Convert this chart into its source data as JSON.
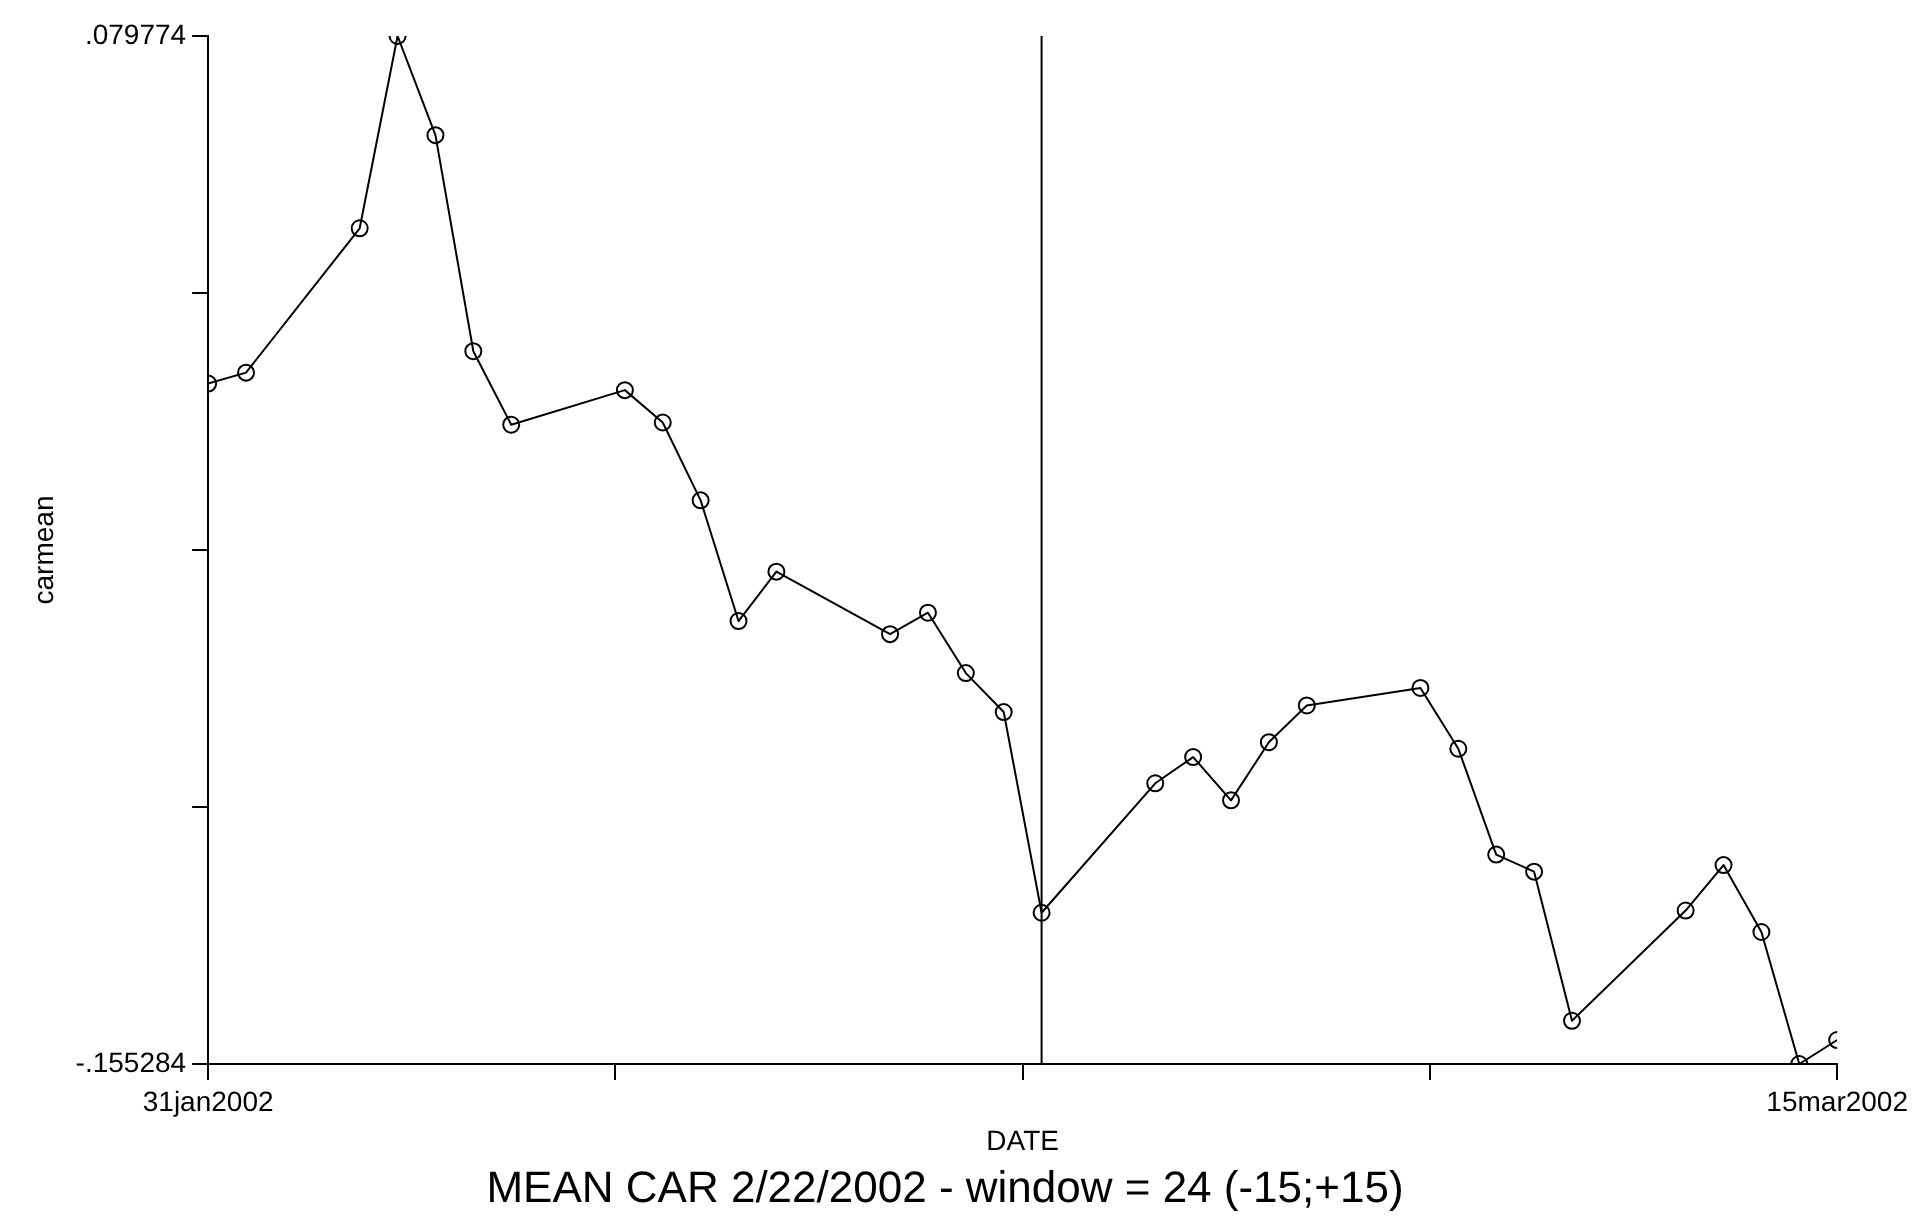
{
  "chart_data": {
    "type": "line",
    "title": "MEAN CAR 2/22/2002 - window = 24 (-15;+15)",
    "xlabel": "DATE",
    "ylabel": "carmean",
    "x": [
      "2002-01-31",
      "2002-02-01",
      "2002-02-04",
      "2002-02-05",
      "2002-02-06",
      "2002-02-07",
      "2002-02-08",
      "2002-02-11",
      "2002-02-12",
      "2002-02-13",
      "2002-02-14",
      "2002-02-15",
      "2002-02-18",
      "2002-02-19",
      "2002-02-20",
      "2002-02-21",
      "2002-02-22",
      "2002-02-25",
      "2002-02-26",
      "2002-02-27",
      "2002-02-28",
      "2002-03-01",
      "2002-03-04",
      "2002-03-05",
      "2002-03-06",
      "2002-03-07",
      "2002-03-08",
      "2002-03-11",
      "2002-03-12",
      "2002-03-13",
      "2002-03-14",
      "2002-03-15"
    ],
    "series": [
      {
        "color": "#000000",
        "values": [
          0.0003,
          0.0028,
          0.0358,
          0.079774,
          0.0571,
          0.0077,
          -0.0091,
          -0.0012,
          -0.0086,
          -0.0264,
          -0.054,
          -0.0427,
          -0.057,
          -0.0521,
          -0.0659,
          -0.0748,
          -0.1207,
          -0.0911,
          -0.0851,
          -0.095,
          -0.0817,
          -0.0733,
          -0.0693,
          -0.0832,
          -0.1074,
          -0.1113,
          -0.1454,
          -0.1202,
          -0.1098,
          -0.1251,
          -0.155284,
          -0.1498
        ]
      }
    ],
    "xlim": [
      "2002-01-31",
      "2002-03-15"
    ],
    "xticks": [
      {
        "value": "2002-01-31",
        "label": "31jan2002"
      },
      {
        "value": "2002-02-10T18:00",
        "label": null
      },
      {
        "value": "2002-02-21T12:00",
        "label": null
      },
      {
        "value": "2002-03-04T06:00",
        "label": null
      },
      {
        "value": "2002-03-15",
        "label": "15mar2002"
      }
    ],
    "ylim": [
      -0.155284,
      0.079774
    ],
    "yticks": [
      {
        "value": -0.155284,
        "label": "-.155284"
      },
      {
        "value": -0.0965195,
        "label": null
      },
      {
        "value": -0.037755,
        "label": null
      },
      {
        "value": 0.0210095,
        "label": null
      },
      {
        "value": 0.079774,
        "label": ".079774"
      }
    ],
    "ref_lines": [
      {
        "axis": "x",
        "value": "2002-02-22",
        "color": "#000000"
      }
    ],
    "grid": false,
    "legend": false,
    "marker": "circle",
    "line_style": "solid"
  }
}
